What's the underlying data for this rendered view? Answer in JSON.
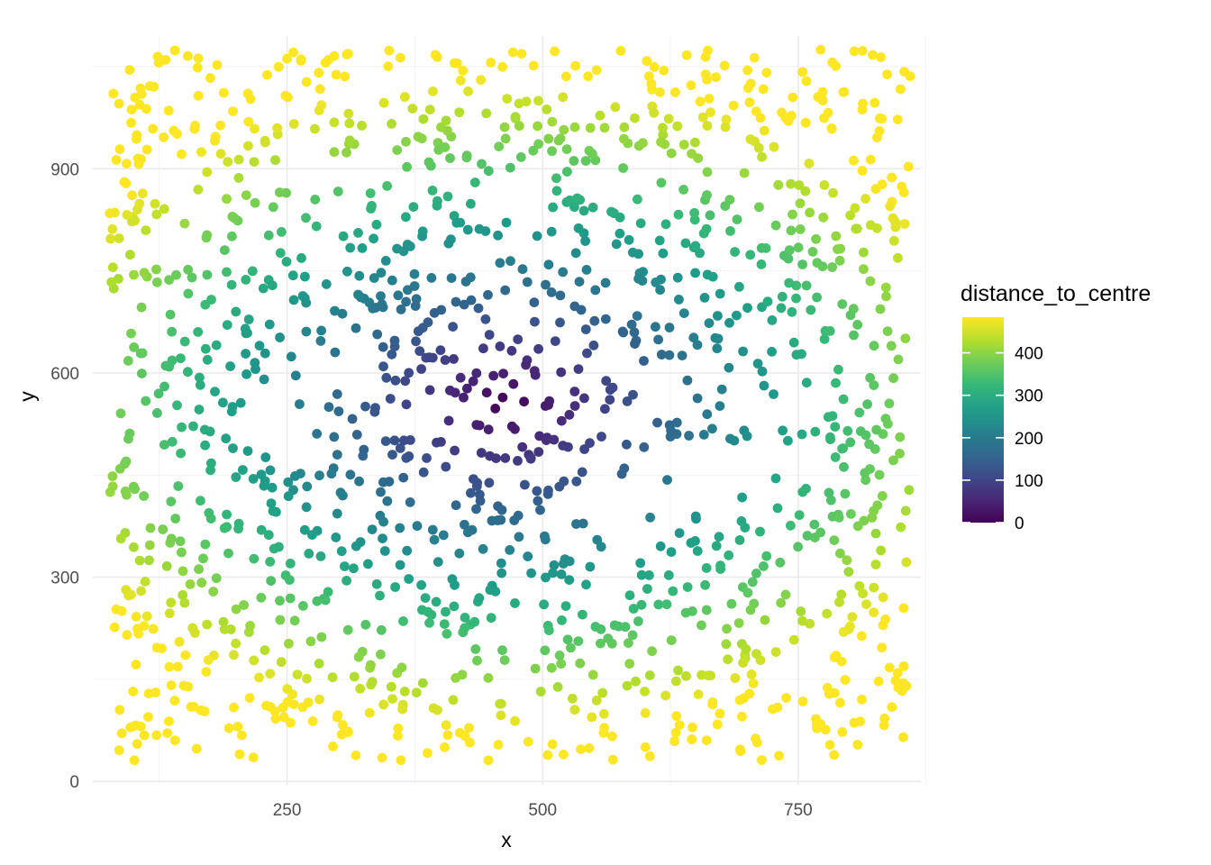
{
  "chart_data": {
    "type": "scatter",
    "title": "",
    "xlabel": "x",
    "ylabel": "y",
    "xlim": [
      60,
      870
    ],
    "ylim": [
      -5,
      1095
    ],
    "x_ticks": [
      250,
      500,
      750
    ],
    "y_ticks": [
      0,
      300,
      600,
      900
    ],
    "x_tick_labels": [
      "250",
      "500",
      "750"
    ],
    "y_tick_labels": [
      "0",
      "300",
      "600",
      "900"
    ],
    "grid": true,
    "legend": {
      "title": "distance_to_centre",
      "placement": "right",
      "type": "colorbar",
      "range": [
        0,
        484
      ],
      "ticks": [
        0,
        100,
        200,
        300,
        400
      ],
      "tick_labels": [
        "0",
        "100",
        "200",
        "300",
        "400"
      ],
      "palette": "viridis",
      "colors": [
        "#440154",
        "#482878",
        "#3E4A89",
        "#31688E",
        "#26828E",
        "#1F9E89",
        "#35B779",
        "#6DCD59",
        "#B4DE2C",
        "#FDE725"
      ]
    },
    "centre": [
      465,
      555
    ],
    "series": [
      {
        "x_range": [
          75,
          860
        ],
        "y_range": [
          30,
          1075
        ],
        "point_count": 1500,
        "distribution": "approximately uniform random",
        "color_by": "distance_to_centre"
      }
    ]
  }
}
